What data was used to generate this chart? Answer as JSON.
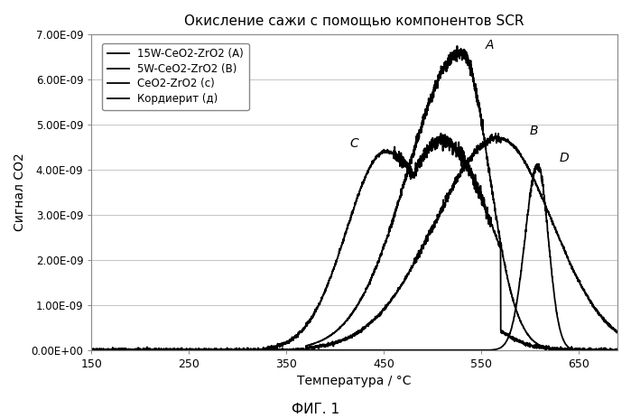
{
  "title": "Окисление сажи с помощью компонентов SCR",
  "xlabel": "Температура / °C",
  "ylabel": "Сигнал CO2",
  "fig_label": "ФИГ. 1",
  "xlim": [
    150,
    690
  ],
  "ylim": [
    0,
    7e-09
  ],
  "yticks": [
    0,
    1e-09,
    2e-09,
    3e-09,
    4e-09,
    5e-09,
    6e-09,
    7e-09
  ],
  "ytick_labels": [
    "0.00E+00",
    "1.00E-09",
    "2.00E-09",
    "3.00E-09",
    "4.00E-09",
    "5.00E-09",
    "6.00E-09",
    "7.00E-09"
  ],
  "xticks": [
    150,
    250,
    350,
    450,
    550,
    650
  ],
  "legend": [
    "15W-CeO2-ZrO2 (A)",
    "5W-CeO2-ZrO2 (В)",
    "CeO2-ZrO2 (с)",
    "Кордиерит (д)"
  ],
  "background_color": "#ffffff"
}
